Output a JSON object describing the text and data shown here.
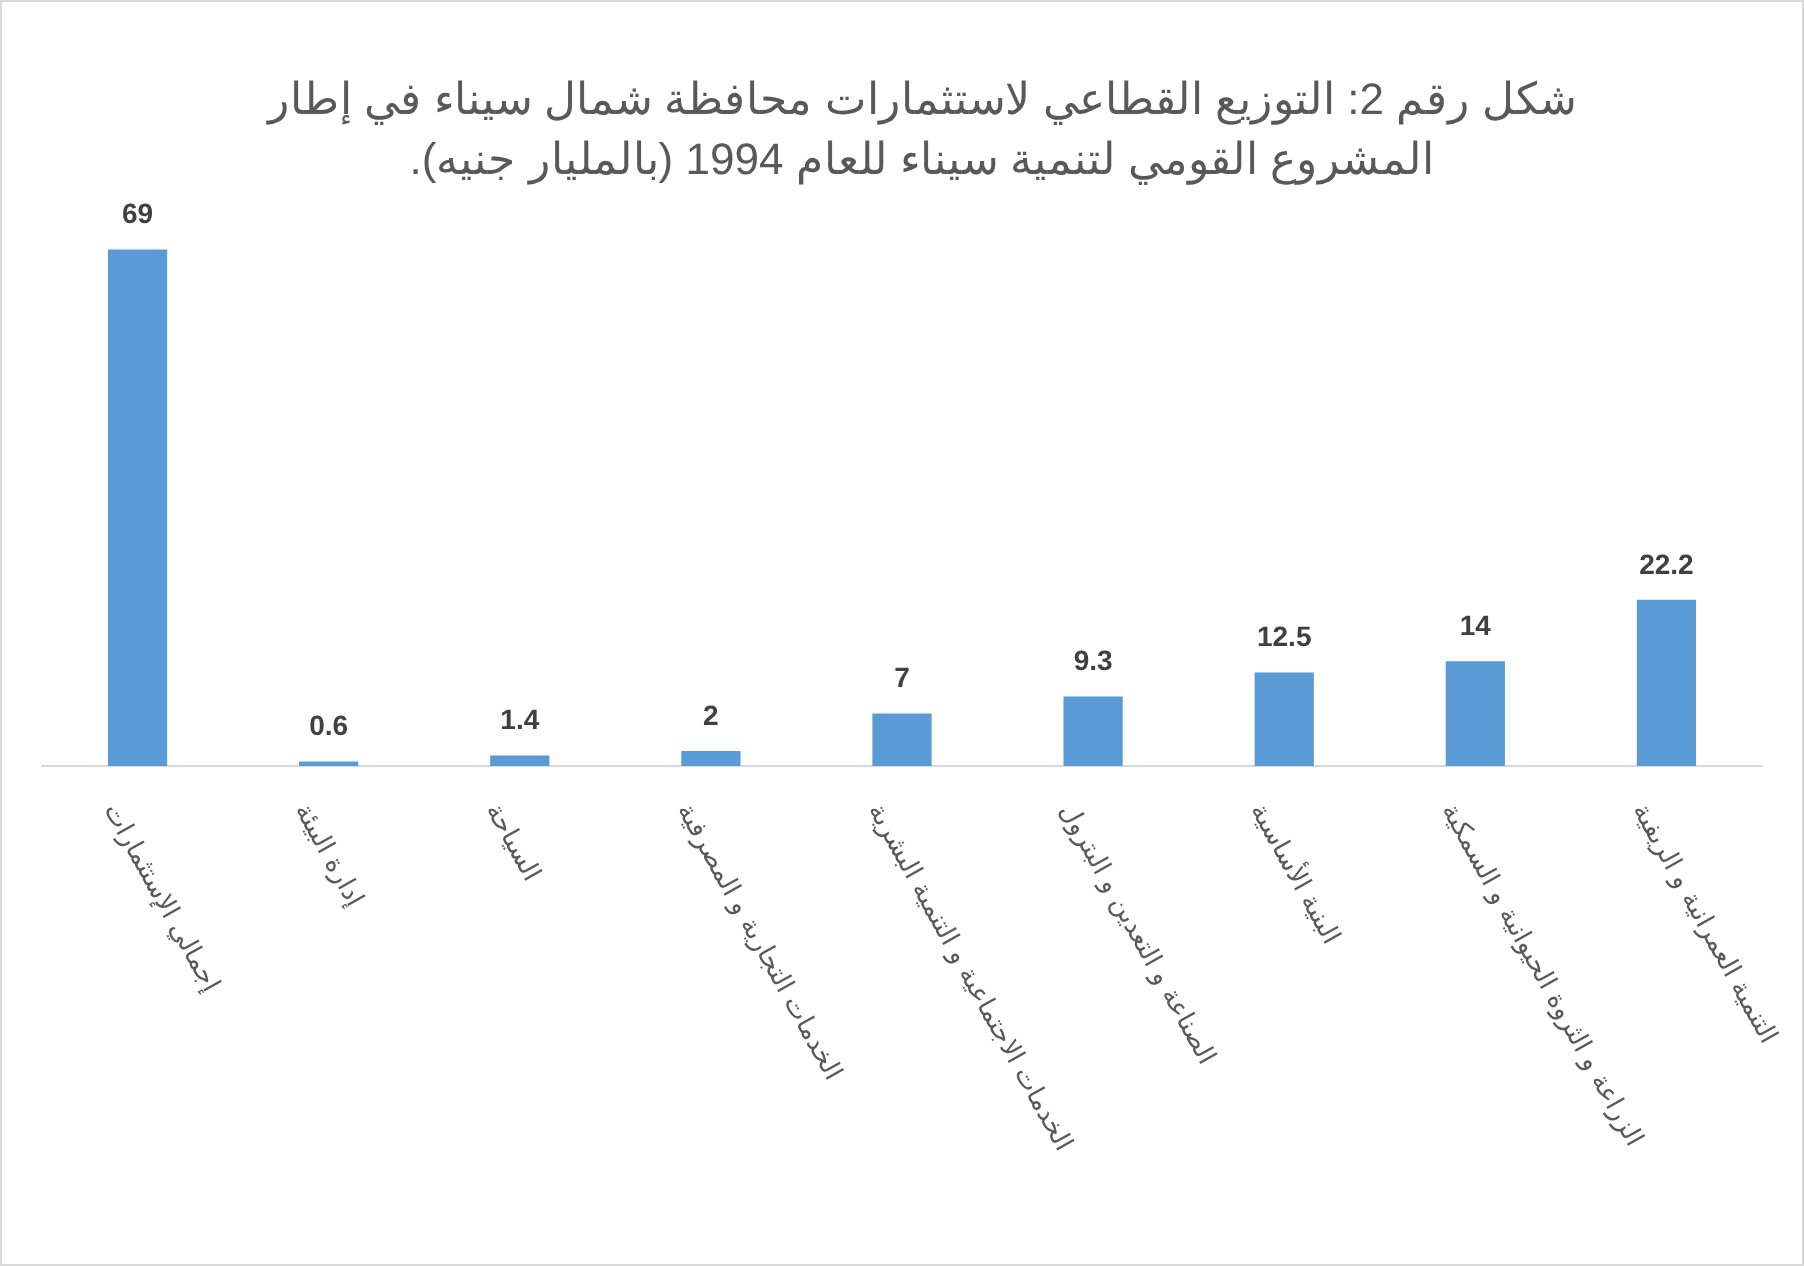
{
  "chart_data": {
    "type": "bar",
    "title": "شكل رقم 2: التوزيع القطاعي لاستثمارات محافظة شمال سيناء في إطار المشروع القومي لتنمية سيناء للعام 1994 (بالمليار جنيه).",
    "categories": [
      "إجمالي الإستثمارات",
      "إدارة البيئة",
      "السياحة",
      "الخدمات التجارية و المصرفية",
      "الخدمات الاجتماعية و التنمية البشرية",
      "الصناعة و التعدين و البترول",
      "البنية الأساسية",
      "الزراعة و الثروة الحيوانية و السمكية",
      "التنمية العمرانية و الريفية"
    ],
    "values": [
      69,
      0.6,
      1.4,
      2,
      7,
      9.3,
      12.5,
      14,
      22.2
    ],
    "color": "#5b9bd5",
    "data_labels": true,
    "grid": false,
    "legend": false,
    "tick_labels": "x"
  }
}
